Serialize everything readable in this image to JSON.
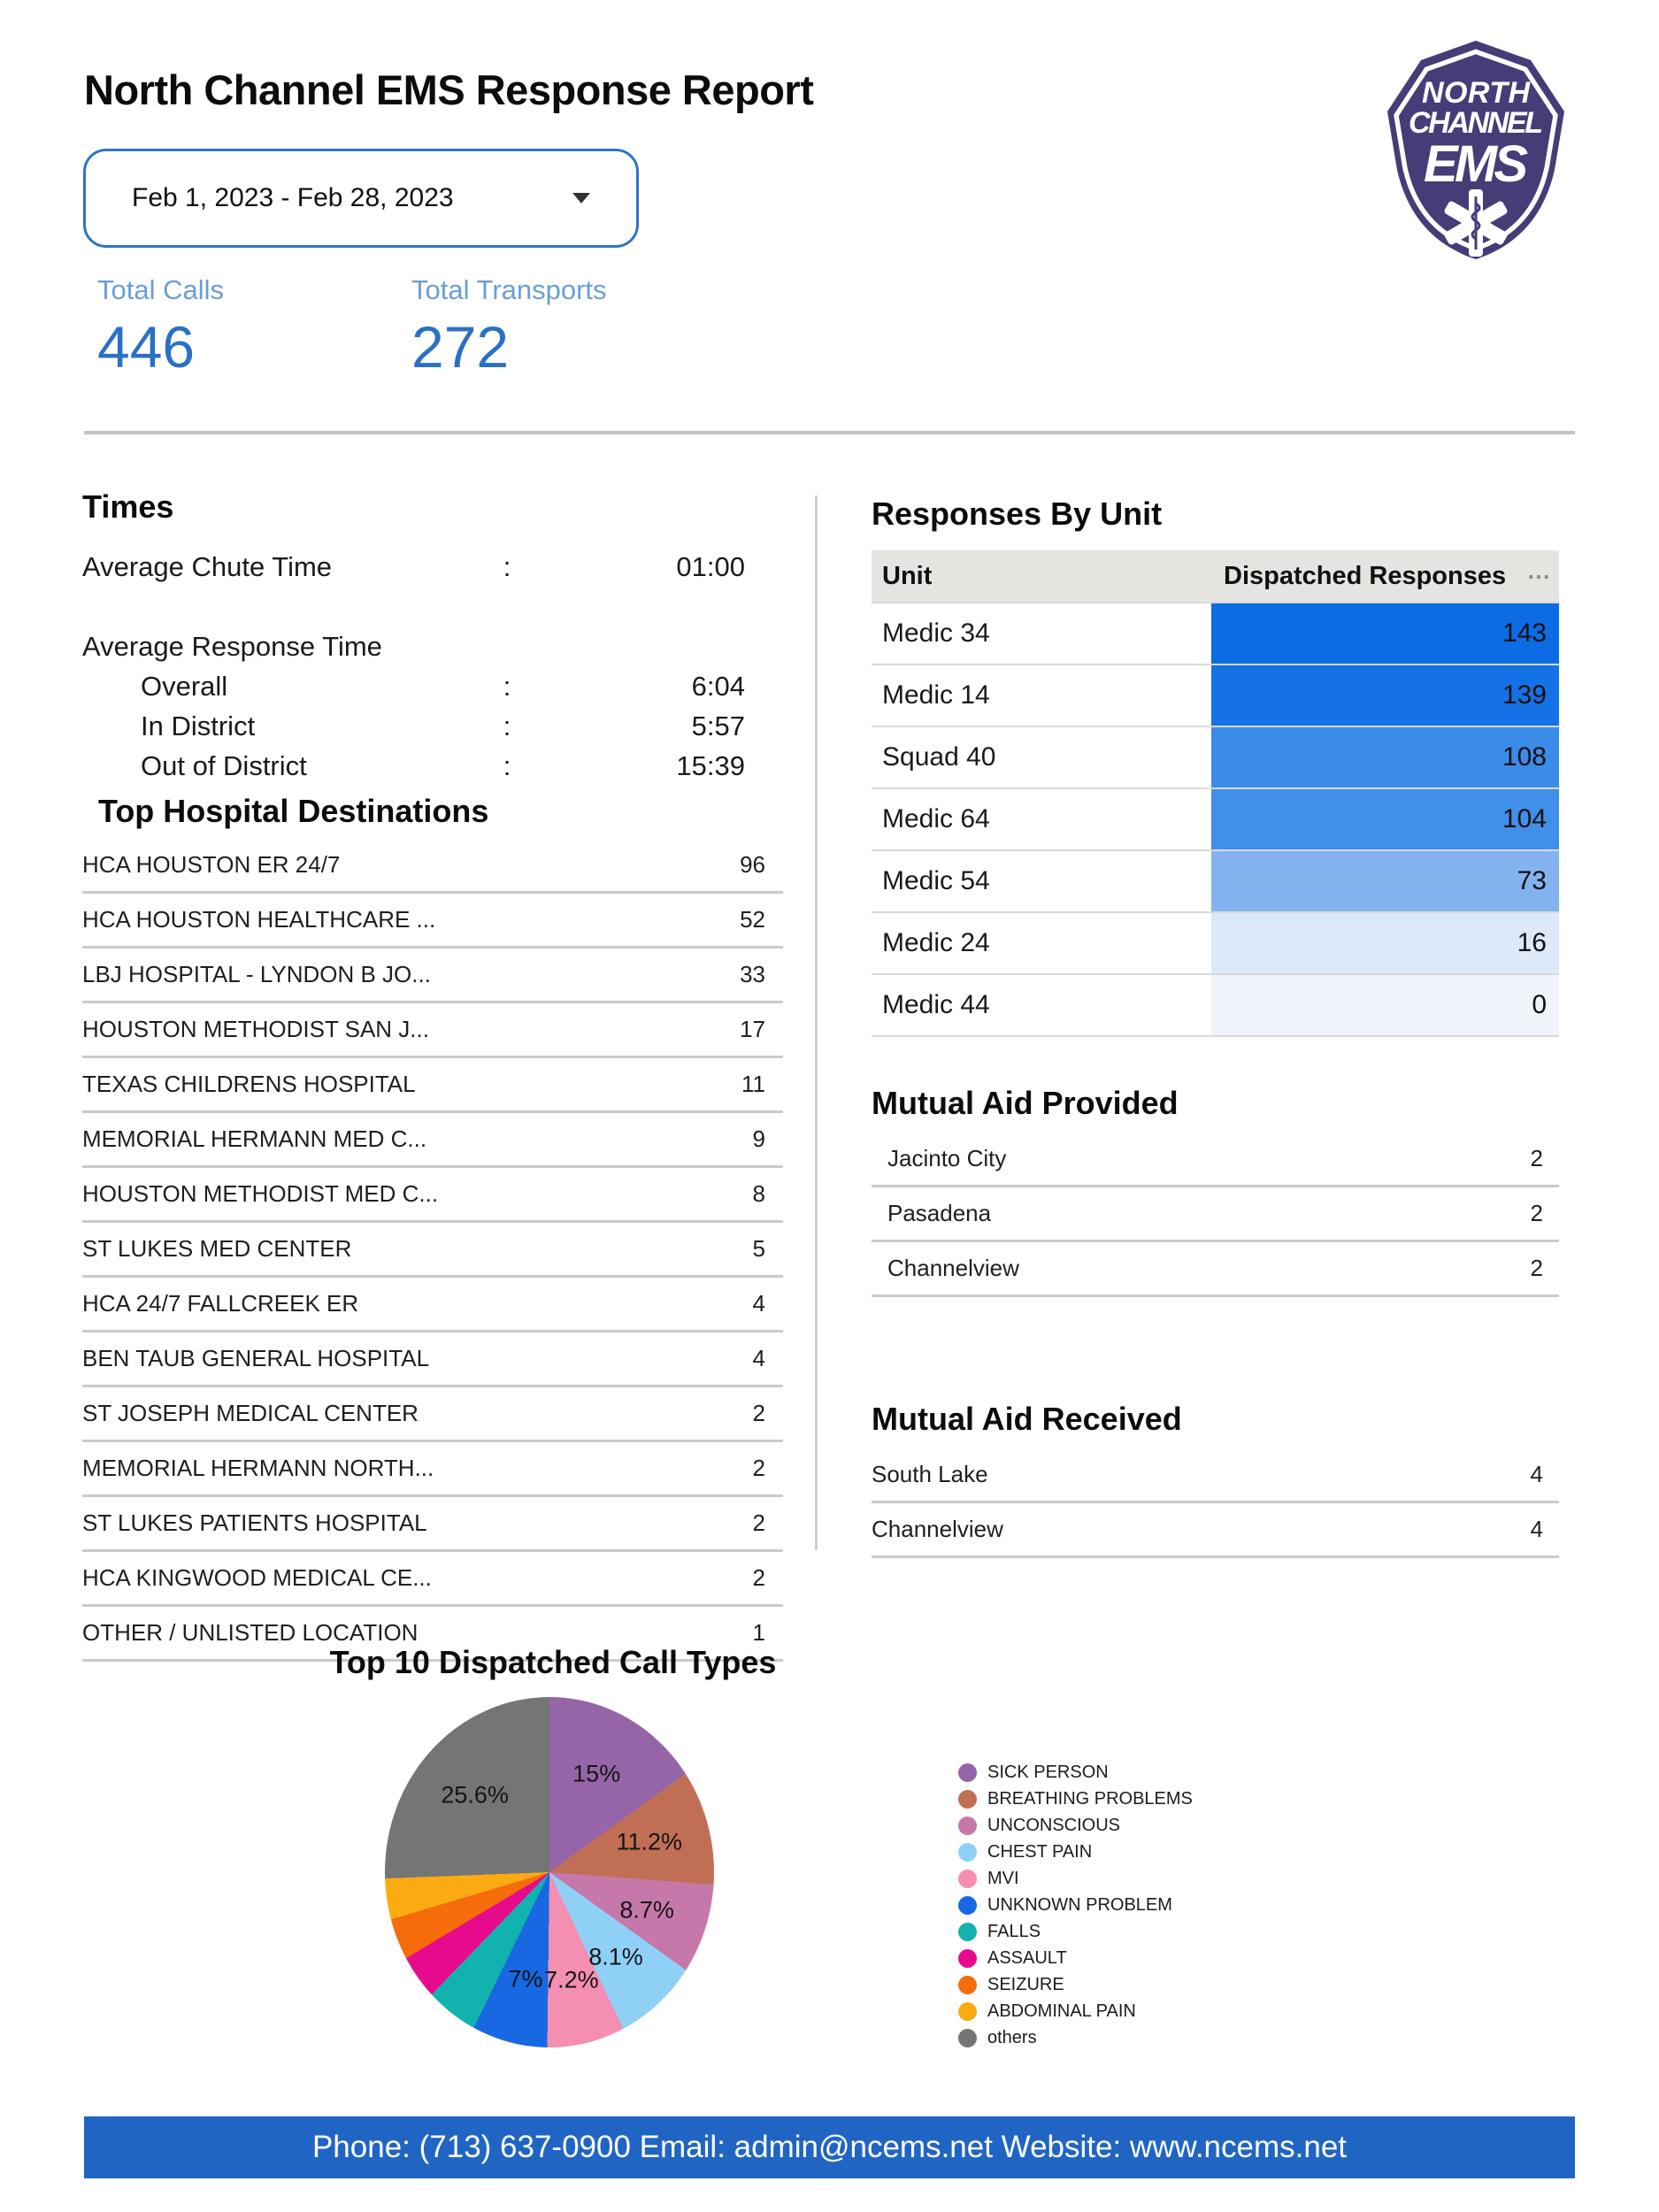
{
  "report": {
    "title": "North Channel EMS Response Report",
    "date_range": "Feb 1, 2023 - Feb 28, 2023",
    "stats": [
      {
        "label": "Total Calls",
        "value": "446"
      },
      {
        "label": "Total Transports",
        "value": "272"
      }
    ],
    "brand": {
      "logo_purple": "#473c78",
      "accent_blue": "#2a70c4",
      "footer_blue": "#2065c4",
      "date_border_blue": "#2e74c9"
    },
    "logo": {
      "line1": "NORTH",
      "line2": "CHANNEL",
      "line3": "EMS"
    }
  },
  "times": {
    "heading": "Times",
    "rows": [
      {
        "label": "Average Chute Time",
        "colon": ":",
        "value": "01:00",
        "pad": "0px",
        "mt": "0px"
      },
      {
        "label": "Average Response Time",
        "colon": "",
        "value": "",
        "pad": "0px",
        "mt": "45px"
      },
      {
        "label": "Overall",
        "colon": ":",
        "value": "6:04",
        "pad": "66px",
        "mt": "0px"
      },
      {
        "label": "In District",
        "colon": ":",
        "value": "5:57",
        "pad": "66px",
        "mt": "0px"
      },
      {
        "label": "Out of District",
        "colon": ":",
        "value": "15:39",
        "pad": "66px",
        "mt": "0px"
      }
    ]
  },
  "hospitals": {
    "heading": "Top Hospital Destinations",
    "rows": [
      {
        "name": "HCA HOUSTON ER 24/7",
        "value": "96"
      },
      {
        "name": "HCA HOUSTON HEALTHCARE ...",
        "value": "52"
      },
      {
        "name": "LBJ HOSPITAL - LYNDON B JO...",
        "value": "33"
      },
      {
        "name": "HOUSTON METHODIST SAN J...",
        "value": "17"
      },
      {
        "name": "TEXAS CHILDRENS HOSPITAL",
        "value": "11"
      },
      {
        "name": "MEMORIAL HERMANN MED C...",
        "value": "9"
      },
      {
        "name": "HOUSTON METHODIST MED C...",
        "value": "8"
      },
      {
        "name": "ST LUKES MED CENTER",
        "value": "5"
      },
      {
        "name": "HCA 24/7 FALLCREEK ER",
        "value": "4"
      },
      {
        "name": "BEN TAUB GENERAL HOSPITAL",
        "value": "4"
      },
      {
        "name": "ST JOSEPH MEDICAL CENTER",
        "value": "2"
      },
      {
        "name": "MEMORIAL HERMANN NORTH...",
        "value": "2"
      },
      {
        "name": "ST LUKES PATIENTS HOSPITAL",
        "value": "2"
      },
      {
        "name": "HCA KINGWOOD MEDICAL CE...",
        "value": "2"
      },
      {
        "name": "OTHER / UNLISTED LOCATION",
        "value": "1"
      }
    ]
  },
  "responses_by_unit": {
    "heading": "Responses By Unit",
    "columns": [
      "Unit",
      "Dispatched Responses"
    ],
    "menu_icon": "⋯",
    "rows": [
      {
        "unit": "Medic 34",
        "value": "143",
        "color": "#0b6ce4"
      },
      {
        "unit": "Medic 14",
        "value": "139",
        "color": "#1472e6"
      },
      {
        "unit": "Squad 40",
        "value": "108",
        "color": "#3b8ce9"
      },
      {
        "unit": "Medic 64",
        "value": "104",
        "color": "#408fe9"
      },
      {
        "unit": "Medic 54",
        "value": "73",
        "color": "#82b3ef"
      },
      {
        "unit": "Medic 24",
        "value": "16",
        "color": "#dde9f8"
      },
      {
        "unit": "Medic 44",
        "value": "0",
        "color": "#eff4fb"
      }
    ]
  },
  "mutual_aid_provided": {
    "heading": "Mutual Aid Provided",
    "rows": [
      {
        "name": "Jacinto City",
        "value": "2"
      },
      {
        "name": "Pasadena",
        "value": "2"
      },
      {
        "name": "Channelview",
        "value": "2"
      }
    ]
  },
  "mutual_aid_received": {
    "heading": "Mutual Aid Received",
    "rows": [
      {
        "name": "South Lake",
        "value": "4"
      },
      {
        "name": "Channelview",
        "value": "4"
      }
    ]
  },
  "chart_data": {
    "type": "pie",
    "title": "Top 10 Dispatched Call Types",
    "start_angle_deg": 0,
    "direction": "clockwise",
    "legend_position": "right",
    "slices": [
      {
        "label": "SICK PERSON",
        "value": 15,
        "pct_label": "15%",
        "color": "#9565a8"
      },
      {
        "label": "BREATHING PROBLEMS",
        "value": 11.2,
        "pct_label": "11.2%",
        "color": "#c06f55"
      },
      {
        "label": "UNCONSCIOUS",
        "value": 8.7,
        "pct_label": "8.7%",
        "color": "#c678ab"
      },
      {
        "label": "CHEST PAIN",
        "value": 8.1,
        "pct_label": "8.1%",
        "color": "#8fd1f6"
      },
      {
        "label": "MVI",
        "value": 7.2,
        "pct_label": "7.2%",
        "color": "#f48fb1"
      },
      {
        "label": "UNKNOWN PROBLEM",
        "value": 7,
        "pct_label": "7%",
        "color": "#1768e2"
      },
      {
        "label": "FALLS",
        "value": 5,
        "pct_label": "",
        "color": "#12b2ae"
      },
      {
        "label": "ASSAULT",
        "value": 4.2,
        "pct_label": "",
        "color": "#e80a8c"
      },
      {
        "label": "SEIZURE",
        "value": 4,
        "pct_label": "",
        "color": "#f66c0b"
      },
      {
        "label": "ABDOMINAL PAIN",
        "value": 4,
        "pct_label": "",
        "color": "#fbab11"
      },
      {
        "label": "others",
        "value": 25.6,
        "pct_label": "25.6%",
        "color": "#757575"
      }
    ]
  },
  "footer": {
    "text": "Phone: (713) 637-0900 Email: admin@ncems.net Website: www.ncems.net"
  }
}
